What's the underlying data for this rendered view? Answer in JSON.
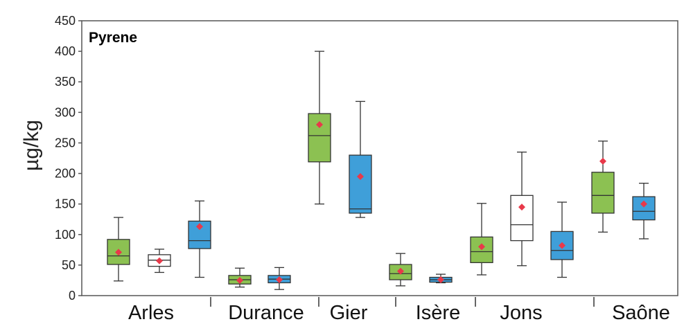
{
  "chart_data": {
    "type": "boxplot",
    "title": "Pyrene",
    "ylabel": "µg/kg",
    "ylim": [
      0,
      450
    ],
    "yticks": [
      0,
      50,
      100,
      150,
      200,
      250,
      300,
      350,
      400,
      450
    ],
    "tick_labels": [
      "0",
      "50",
      "100",
      "150",
      "200",
      "250",
      "300",
      "350",
      "400",
      "450"
    ],
    "grid": false,
    "colors": {
      "green": "#8cc152",
      "white": "#ffffff",
      "blue": "#3f9fd9",
      "mean": "#e8394a",
      "frame": "#555555"
    },
    "groups": [
      {
        "label": "Arles",
        "boxes": [
          {
            "color": "green",
            "whisker_low": 24,
            "q1": 51,
            "median": 65,
            "q3": 92,
            "whisker_high": 128,
            "mean": 71
          },
          {
            "color": "white",
            "whisker_low": 38,
            "q1": 48,
            "median": 58,
            "q3": 67,
            "whisker_high": 76,
            "mean": 57
          },
          {
            "color": "blue",
            "whisker_low": 30,
            "q1": 77,
            "median": 90,
            "q3": 122,
            "whisker_high": 155,
            "mean": 113
          }
        ]
      },
      {
        "label": "Durance",
        "boxes": [
          {
            "color": "green",
            "whisker_low": 14,
            "q1": 19,
            "median": 26,
            "q3": 33,
            "whisker_high": 45,
            "mean": 25
          },
          {
            "color": "blue",
            "whisker_low": 10,
            "q1": 21,
            "median": 27,
            "q3": 33,
            "whisker_high": 46,
            "mean": 26
          }
        ]
      },
      {
        "label": "Gier",
        "boxes": [
          {
            "color": "green",
            "whisker_low": 150,
            "q1": 219,
            "median": 262,
            "q3": 298,
            "whisker_high": 400,
            "mean": 280
          },
          {
            "color": "blue",
            "whisker_low": 128,
            "q1": 135,
            "median": 142,
            "q3": 230,
            "whisker_high": 318,
            "mean": 195
          }
        ]
      },
      {
        "label": "Isère",
        "boxes": [
          {
            "color": "green",
            "whisker_low": 16,
            "q1": 26,
            "median": 36,
            "q3": 51,
            "whisker_high": 69,
            "mean": 40
          },
          {
            "color": "blue",
            "whisker_low": 21,
            "q1": 22,
            "median": 26,
            "q3": 30,
            "whisker_high": 35,
            "mean": 26
          }
        ]
      },
      {
        "label": "Jons",
        "boxes": [
          {
            "color": "green",
            "whisker_low": 34,
            "q1": 54,
            "median": 72,
            "q3": 96,
            "whisker_high": 151,
            "mean": 80
          },
          {
            "color": "white",
            "whisker_low": 49,
            "q1": 90,
            "median": 116,
            "q3": 164,
            "whisker_high": 235,
            "mean": 145
          },
          {
            "color": "blue",
            "whisker_low": 30,
            "q1": 59,
            "median": 74,
            "q3": 105,
            "whisker_high": 153,
            "mean": 82
          }
        ]
      },
      {
        "label": "Saône",
        "boxes": [
          {
            "color": "green",
            "whisker_low": 104,
            "q1": 135,
            "median": 164,
            "q3": 202,
            "whisker_high": 253,
            "mean": 220
          },
          {
            "color": "blue",
            "whisker_low": 93,
            "q1": 124,
            "median": 138,
            "q3": 162,
            "whisker_high": 184,
            "mean": 150
          }
        ]
      }
    ]
  }
}
